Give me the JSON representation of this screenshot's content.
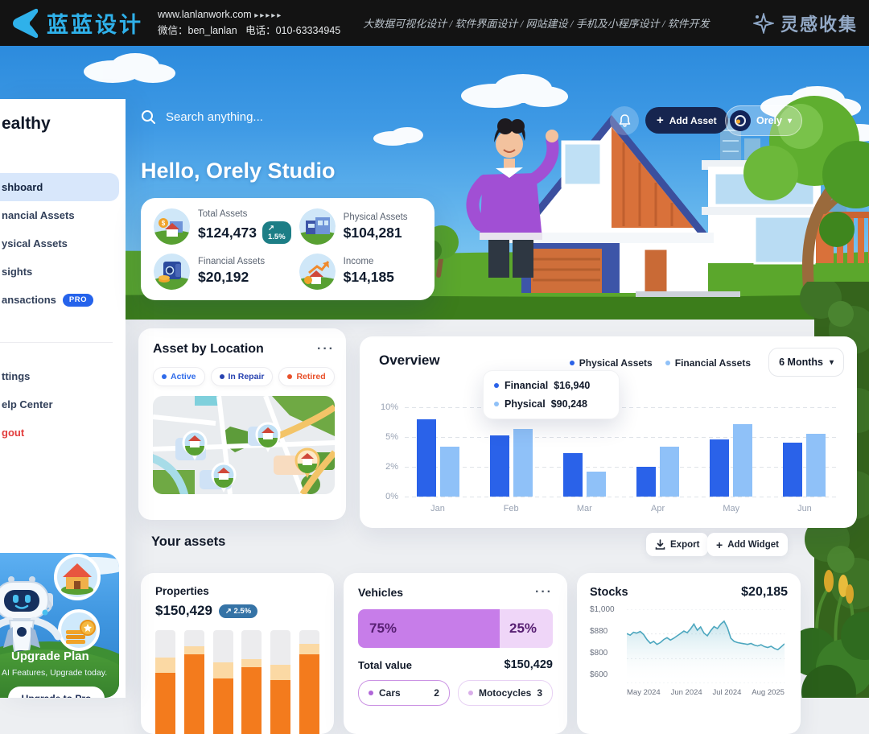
{
  "banner": {
    "logo_text": "蓝蓝设计",
    "website": "www.lanlanwork.com",
    "arrows": "▸▸▸▸▸",
    "wechat": "微信：ben_lanlan",
    "phone": "电话：010-63334945",
    "services": "大数据可视化设计 / 软件界面设计 / 网站建设 / 手机及小程序设计 / 软件开发",
    "collect": "灵感收集"
  },
  "icons": {
    "plus": "+",
    "chevron_down": "▾",
    "ellipsis": "···"
  },
  "sidebar": {
    "logo": "ealthy",
    "nav": [
      {
        "label": "shboard",
        "active": true
      },
      {
        "label": "nancial Assets"
      },
      {
        "label": "ysical Assets"
      },
      {
        "label": "sights"
      },
      {
        "label": "ansactions",
        "badge": "PRO"
      }
    ],
    "nav2": [
      {
        "label": "ttings"
      },
      {
        "label": "elp Center"
      },
      {
        "label": "gout"
      }
    ],
    "upgrade": {
      "title": "Upgrade Plan",
      "subtitle": "AI Features, Upgrade today.",
      "button": "Upgrade to Pro"
    }
  },
  "topbar": {
    "search_placeholder": "Search anything...",
    "add_asset": "Add Asset",
    "user": "Orely"
  },
  "hero": {
    "greeting": "Hello, Orely Studio"
  },
  "summary": {
    "items": [
      {
        "label": "Total Assets",
        "value": "$124,473",
        "badge": "↗ 1.5%"
      },
      {
        "label": "Physical Assets",
        "value": "$104,281"
      },
      {
        "label": "Financial Assets",
        "value": "$20,192"
      },
      {
        "label": "Income",
        "value": "$14,185"
      }
    ]
  },
  "location": {
    "title": "Asset by Location",
    "menu": "···",
    "filters": [
      {
        "label": "Active",
        "color": "#2f6bea"
      },
      {
        "label": "In Repair",
        "color": "#2742b0"
      },
      {
        "label": "Retired",
        "color": "#e8502a"
      }
    ]
  },
  "overview": {
    "title": "Overview",
    "legend": [
      {
        "label": "Physical Assets",
        "color": "#2a62e9"
      },
      {
        "label": "Financial Assets",
        "color": "#8fc1f8"
      }
    ],
    "range": "6 Months",
    "ylabels": [
      "10%",
      "5%",
      "2%",
      "0%"
    ],
    "tooltip": [
      {
        "label": "Financial",
        "value": "$16,940",
        "color": "#2a62e9"
      },
      {
        "label": "Physical",
        "value": "$90,248",
        "color": "#8fc1f8"
      }
    ]
  },
  "your_assets": {
    "title": "Your assets",
    "export_label": "Export",
    "add_widget_label": "Add Widget"
  },
  "properties": {
    "title": "Properties",
    "value": "$150,429",
    "badge": "↗ 2.5%"
  },
  "vehicles": {
    "title": "Vehicles",
    "menu": "···",
    "left_pct": "75%",
    "right_pct": "25%",
    "total_label": "Total value",
    "total_value": "$150,429",
    "pills": [
      {
        "label": "Cars",
        "count": "2"
      },
      {
        "label": "Motocycles",
        "count": "3"
      }
    ]
  },
  "stocks": {
    "title": "Stocks",
    "value": "$20,185",
    "ylabels": [
      "$1,000",
      "$880",
      "$800",
      "$600"
    ],
    "xlabels": [
      "May 2024",
      "Jun 2024",
      "Jul 2024",
      "Aug 2025"
    ]
  },
  "chart_data": [
    {
      "type": "bar",
      "title": "Overview",
      "categories": [
        "Jan",
        "Feb",
        "Mar",
        "Apr",
        "May",
        "Jun"
      ],
      "series": [
        {
          "name": "Financial",
          "color": "#2a62e9",
          "values": [
            8.0,
            5.3,
            3.4,
            2.0,
            4.8,
            4.4
          ]
        },
        {
          "name": "Physical",
          "color": "#8fc1f8",
          "values": [
            4.0,
            6.3,
            1.7,
            4.0,
            7.2,
            5.5
          ]
        }
      ],
      "yticks": [
        0,
        2,
        5,
        10
      ],
      "ytick_labels": [
        "0%",
        "2%",
        "5%",
        "10%"
      ],
      "ylabel": "percent",
      "grid": "dashed-horizontal",
      "legend_position": "top-right"
    },
    {
      "type": "bar",
      "title": "Properties",
      "stacked": true,
      "categories": [
        "1",
        "2",
        "3",
        "4",
        "5",
        "6"
      ],
      "series": [
        {
          "name": "value",
          "color": "#f37b1d",
          "values": [
            59,
            77,
            54,
            65,
            52,
            77
          ]
        },
        {
          "name": "projected",
          "color": "#fbd9a4",
          "values": [
            15,
            8,
            15,
            7,
            15,
            10
          ]
        }
      ],
      "track_color": "#ececee",
      "ymax": 100
    },
    {
      "type": "bar",
      "title": "Vehicles split",
      "categories": [
        "Cars",
        "Motocycles"
      ],
      "values": [
        75,
        25
      ],
      "colors": [
        "#c77de9",
        "#efd6f8"
      ]
    },
    {
      "type": "line",
      "title": "Stocks",
      "color": "#4da7bf",
      "yticks": [
        600,
        800,
        880,
        1000
      ],
      "ytick_labels": [
        "$600",
        "$800",
        "$880",
        "$1,000"
      ],
      "xticks": [
        "May 2024",
        "Jun 2024",
        "Jul 2024",
        "Aug 2025"
      ],
      "values": [
        882,
        876,
        888,
        884,
        892,
        878,
        862,
        850,
        856,
        846,
        852,
        862,
        868,
        860,
        866,
        874,
        882,
        894,
        886,
        904,
        928,
        898,
        914,
        884,
        874,
        896,
        916,
        906,
        928,
        942,
        910,
        866,
        856,
        852,
        850,
        848,
        846,
        849,
        844,
        841,
        845,
        839,
        836,
        840,
        833,
        829,
        838,
        848
      ]
    }
  ]
}
